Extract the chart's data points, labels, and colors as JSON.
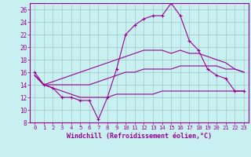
{
  "background_color": "#c8f0f0",
  "grid_color": "#a0c8c8",
  "line_color": "#990099",
  "x_label": "Windchill (Refroidissement éolien,°C)",
  "x_ticks": [
    0,
    1,
    2,
    3,
    4,
    5,
    6,
    7,
    8,
    9,
    10,
    11,
    12,
    13,
    14,
    15,
    16,
    17,
    18,
    19,
    20,
    21,
    22,
    23
  ],
  "ylim": [
    8,
    27
  ],
  "yticks": [
    8,
    10,
    12,
    14,
    16,
    18,
    20,
    22,
    24,
    26
  ],
  "series1_x": [
    0,
    1,
    2,
    3,
    4,
    5,
    6,
    7,
    8,
    9,
    10,
    11,
    12,
    13,
    14,
    15,
    16,
    17,
    18,
    19,
    20,
    21,
    22,
    23
  ],
  "series1_y": [
    16,
    14,
    13.5,
    12,
    12,
    11.5,
    11.5,
    8.5,
    12,
    16.5,
    22,
    23.5,
    24.5,
    25,
    25,
    27,
    25,
    21,
    19.5,
    16.5,
    15.5,
    15,
    13,
    13
  ],
  "series2_x": [
    0,
    1,
    2,
    3,
    4,
    5,
    6,
    7,
    8,
    9,
    10,
    11,
    12,
    13,
    14,
    15,
    16,
    17,
    18,
    19,
    20,
    21,
    22,
    23
  ],
  "series2_y": [
    15.5,
    14,
    13.5,
    13,
    12.5,
    12,
    12,
    12,
    12,
    12.5,
    12.5,
    12.5,
    12.5,
    12.5,
    13,
    13,
    13,
    13,
    13,
    13,
    13,
    13,
    13,
    13
  ],
  "series3_x": [
    0,
    1,
    2,
    3,
    4,
    5,
    6,
    7,
    8,
    9,
    10,
    11,
    12,
    13,
    14,
    15,
    16,
    17,
    18,
    19,
    20,
    21,
    22,
    23
  ],
  "series3_y": [
    15.5,
    14,
    14,
    14,
    14,
    14,
    14,
    14.5,
    15,
    15.5,
    16,
    16,
    16.5,
    16.5,
    16.5,
    16.5,
    17,
    17,
    17,
    17,
    17,
    16.5,
    16.5,
    16
  ],
  "series4_x": [
    0,
    1,
    2,
    3,
    4,
    5,
    6,
    7,
    8,
    9,
    10,
    11,
    12,
    13,
    14,
    15,
    16,
    17,
    18,
    19,
    20,
    21,
    22,
    23
  ],
  "series4_y": [
    15.5,
    14,
    14.5,
    15,
    15.5,
    16,
    16.5,
    17,
    17.5,
    18,
    18.5,
    19,
    19.5,
    19.5,
    19.5,
    19,
    19.5,
    19,
    19,
    18.5,
    18,
    17.5,
    16.5,
    16
  ]
}
